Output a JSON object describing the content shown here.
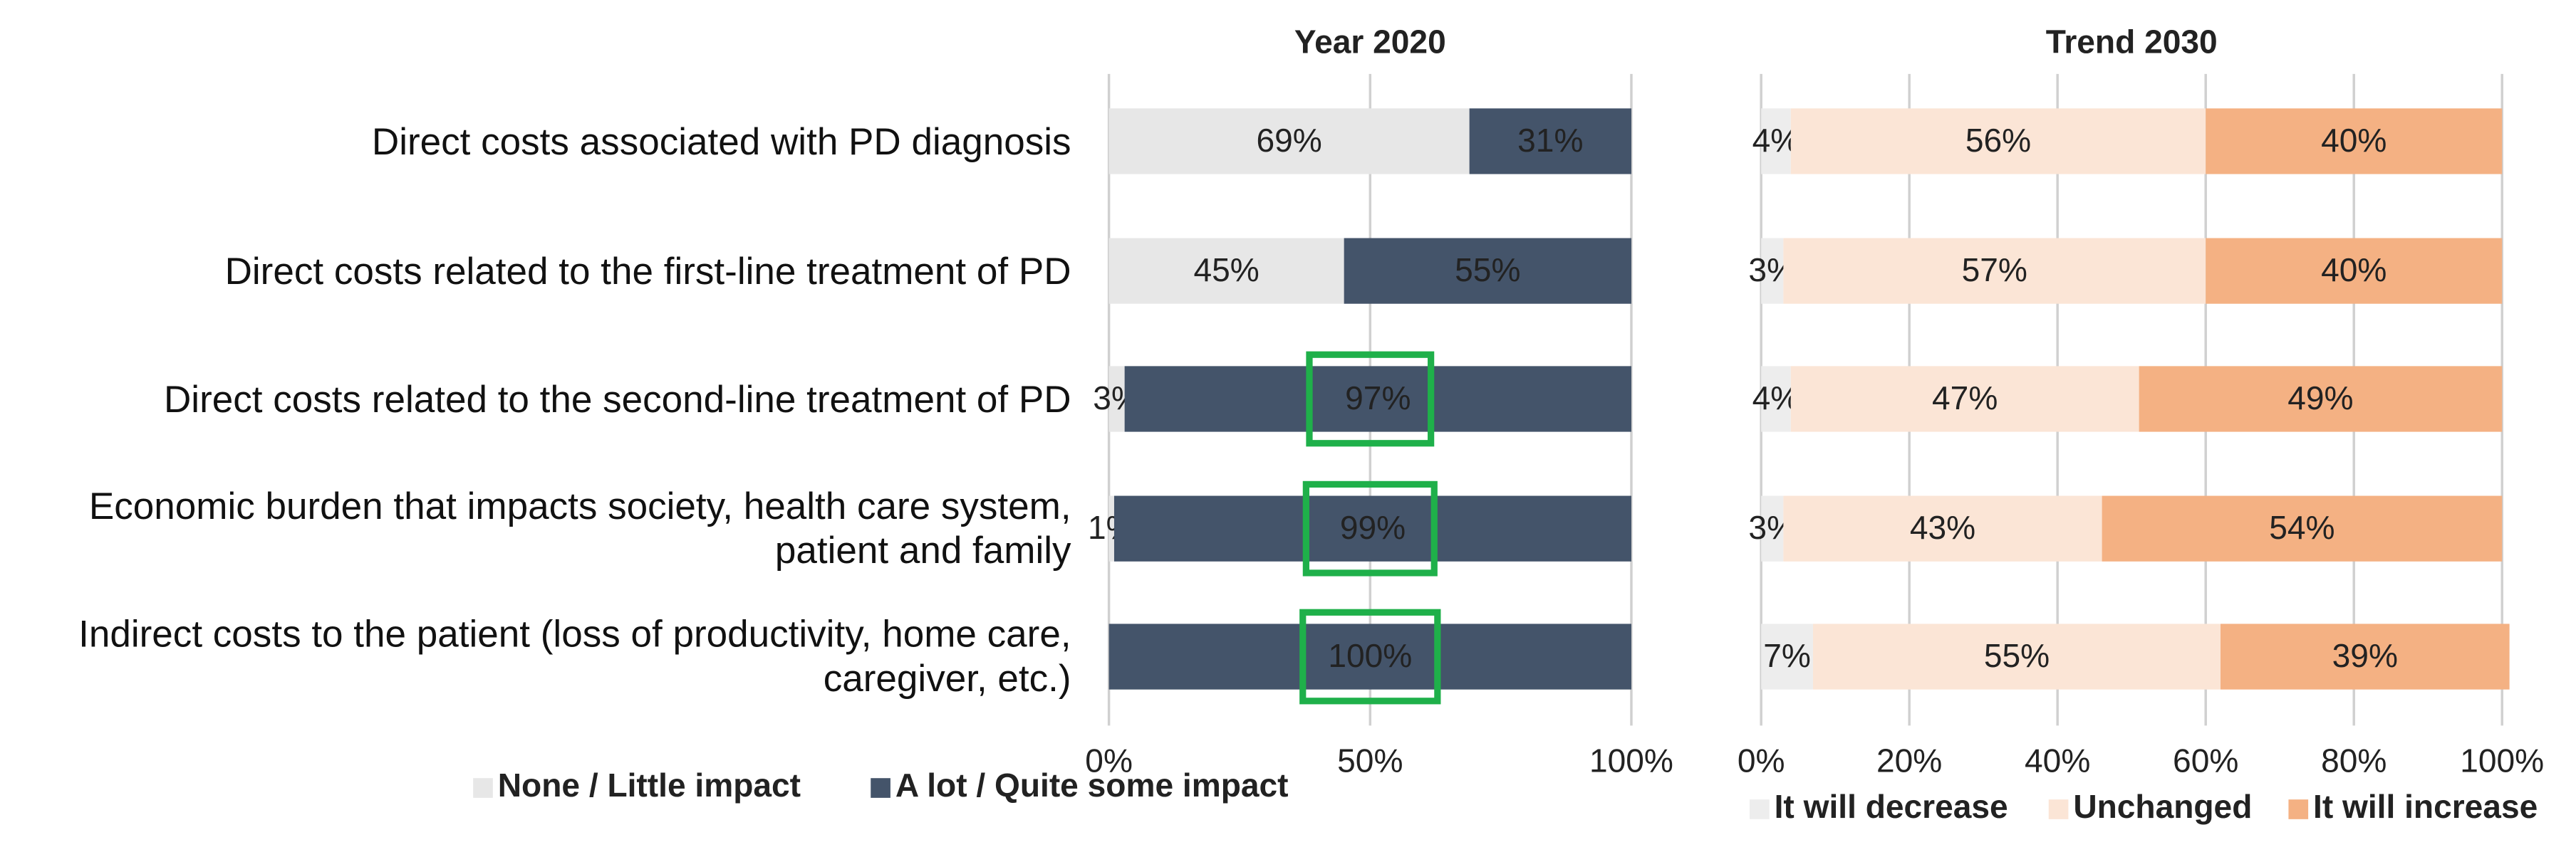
{
  "chart_data": [
    {
      "type": "bar",
      "orientation": "horizontal",
      "stacked": true,
      "title": "Year 2020",
      "categories": [
        "Direct costs associated with PD diagnosis",
        "Direct costs related to the first-line treatment of PD",
        "Direct costs related to the second-line treatment of PD",
        "Economic burden that impacts society, health care system, patient and family",
        "Indirect costs to the patient (loss of productivity, home care, caregiver, etc.)"
      ],
      "series": [
        {
          "name": "None / Little impact",
          "color": "#e7e7e7",
          "values": [
            69,
            45,
            3,
            1,
            0
          ],
          "value_labels": [
            "69%",
            "45%",
            "3%",
            "1%",
            null
          ]
        },
        {
          "name": "A lot / Quite some impact",
          "color": "#44546a",
          "values": [
            31,
            55,
            97,
            99,
            100
          ],
          "value_labels": [
            "31%",
            "55%",
            "97%",
            "99%",
            "100%"
          ]
        }
      ],
      "xlim": [
        0,
        100
      ],
      "xticks": [
        {
          "value": 0,
          "label": "0%"
        },
        {
          "value": 50,
          "label": "50%"
        },
        {
          "value": 100,
          "label": "100%"
        }
      ],
      "grid": true,
      "legend": "bottom"
    },
    {
      "type": "bar",
      "orientation": "horizontal",
      "stacked": true,
      "title": "Trend 2030",
      "series": [
        {
          "name": "It will decrease",
          "color": "#ededed",
          "values": [
            4,
            3,
            4,
            3,
            7
          ],
          "value_labels": [
            "4%",
            "3%",
            "4%",
            "3%",
            "7%"
          ]
        },
        {
          "name": "Unchanged",
          "color": "#fbe5d6",
          "values": [
            56,
            57,
            47,
            43,
            55
          ],
          "value_labels": [
            "56%",
            "57%",
            "47%",
            "43%",
            "55%"
          ]
        },
        {
          "name": "It will increase",
          "color": "#f4b183",
          "values": [
            40,
            40,
            49,
            54,
            39
          ],
          "value_labels": [
            "40%",
            "40%",
            "49%",
            "54%",
            "39%"
          ]
        }
      ],
      "xlim": [
        0,
        100
      ],
      "xticks": [
        {
          "value": 0,
          "label": "0%"
        },
        {
          "value": 20,
          "label": "20%"
        },
        {
          "value": 40,
          "label": "40%"
        },
        {
          "value": 60,
          "label": "60%"
        },
        {
          "value": 80,
          "label": "80%"
        },
        {
          "value": 100,
          "label": "100%"
        }
      ],
      "grid": true,
      "legend": "bottom"
    }
  ]
}
